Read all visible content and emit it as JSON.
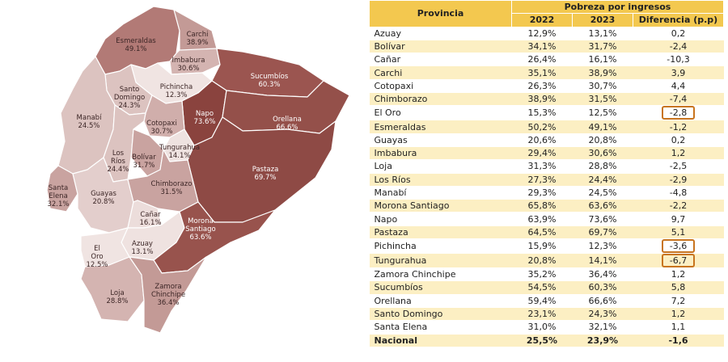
{
  "table": {
    "header_provincia": "Provincia",
    "header_group": "Pobreza por ingresos",
    "header_2022": "2022",
    "header_2023": "2023",
    "header_diff": "Diferencia (p.p)",
    "rows": [
      {
        "provincia": "Azuay",
        "v2022": "12,9%",
        "v2023": "13,1%",
        "diff": "0,2"
      },
      {
        "provincia": "Bolívar",
        "v2022": "34,1%",
        "v2023": "31,7%",
        "diff": "-2,4"
      },
      {
        "provincia": "Cañar",
        "v2022": "26,4%",
        "v2023": "16,1%",
        "diff": "-10,3"
      },
      {
        "provincia": "Carchi",
        "v2022": "35,1%",
        "v2023": "38,9%",
        "diff": "3,9"
      },
      {
        "provincia": "Cotopaxi",
        "v2022": "26,3%",
        "v2023": "30,7%",
        "diff": "4,4"
      },
      {
        "provincia": "Chimborazo",
        "v2022": "38,9%",
        "v2023": "31,5%",
        "diff": "-7,4"
      },
      {
        "provincia": "El Oro",
        "v2022": "15,3%",
        "v2023": "12,5%",
        "diff": "-2,8",
        "highlight": true
      },
      {
        "provincia": "Esmeraldas",
        "v2022": "50,2%",
        "v2023": "49,1%",
        "diff": "-1,2"
      },
      {
        "provincia": "Guayas",
        "v2022": "20,6%",
        "v2023": "20,8%",
        "diff": "0,2"
      },
      {
        "provincia": "Imbabura",
        "v2022": "29,4%",
        "v2023": "30,6%",
        "diff": "1,2"
      },
      {
        "provincia": "Loja",
        "v2022": "31,3%",
        "v2023": "28,8%",
        "diff": "-2,5"
      },
      {
        "provincia": "Los Ríos",
        "v2022": "27,3%",
        "v2023": "24,4%",
        "diff": "-2,9"
      },
      {
        "provincia": "Manabí",
        "v2022": "29,3%",
        "v2023": "24,5%",
        "diff": "-4,8"
      },
      {
        "provincia": "Morona Santiago",
        "v2022": "65,8%",
        "v2023": "63,6%",
        "diff": "-2,2"
      },
      {
        "provincia": "Napo",
        "v2022": "63,9%",
        "v2023": "73,6%",
        "diff": "9,7"
      },
      {
        "provincia": "Pastaza",
        "v2022": "64,5%",
        "v2023": "69,7%",
        "diff": "5,1"
      },
      {
        "provincia": "Pichincha",
        "v2022": "15,9%",
        "v2023": "12,3%",
        "diff": "-3,6",
        "highlight": true
      },
      {
        "provincia": "Tungurahua",
        "v2022": "20,8%",
        "v2023": "14,1%",
        "diff": "-6,7",
        "highlight": true
      },
      {
        "provincia": "Zamora Chinchipe",
        "v2022": "35,2%",
        "v2023": "36,4%",
        "diff": "1,2"
      },
      {
        "provincia": "Sucumbíos",
        "v2022": "54,5%",
        "v2023": "60,3%",
        "diff": "5,8"
      },
      {
        "provincia": "Orellana",
        "v2022": "59,4%",
        "v2023": "66,6%",
        "diff": "7,2"
      },
      {
        "provincia": "Santo Domingo",
        "v2022": "23,1%",
        "v2023": "24,3%",
        "diff": "1,2"
      },
      {
        "provincia": "Santa Elena",
        "v2022": "31,0%",
        "v2023": "32,1%",
        "diff": "1,1"
      }
    ],
    "total": {
      "provincia": "Nacional",
      "v2022": "25,5%",
      "v2023": "23,9%",
      "diff": "-1,6"
    }
  },
  "map": {
    "provinces": [
      {
        "id": "esmeraldas",
        "name": "Esmeraldas",
        "value": "49.1%",
        "color": "#b27a76"
      },
      {
        "id": "carchi",
        "name": "Carchi",
        "value": "38.9%",
        "color": "#c39a96"
      },
      {
        "id": "imbabura",
        "name": "Imbabura",
        "value": "30.6%",
        "color": "#d4b4b1"
      },
      {
        "id": "sucumbios",
        "name": "Sucumbíos",
        "value": "60.3%",
        "color": "#9b5550"
      },
      {
        "id": "pichincha",
        "name": "Pichincha",
        "value": "12.3%",
        "color": "#f0e4e2"
      },
      {
        "id": "santo-domingo",
        "name": "Santo Domingo",
        "value": "24.3%",
        "color": "#dcc3c0"
      },
      {
        "id": "manabi",
        "name": "Manabí",
        "value": "24.5%",
        "color": "#dcc3c0"
      },
      {
        "id": "napo",
        "name": "Napo",
        "value": "73.6%",
        "color": "#8a433e"
      },
      {
        "id": "orellana",
        "name": "Orellana",
        "value": "66.6%",
        "color": "#94504a"
      },
      {
        "id": "cotopaxi",
        "name": "Cotopaxi",
        "value": "30.7%",
        "color": "#d0aeab"
      },
      {
        "id": "tungurahua",
        "name": "Tungurahua",
        "value": "14.1%",
        "color": "#eee2e0"
      },
      {
        "id": "los-rios",
        "name": "Los Ríos",
        "value": "24.4%",
        "color": "#dcc3c0"
      },
      {
        "id": "bolivar",
        "name": "Bolívar",
        "value": "31.7%",
        "color": "#c9a3a0"
      },
      {
        "id": "pastaza",
        "name": "Pastaza",
        "value": "69.7%",
        "color": "#8e4a45"
      },
      {
        "id": "santa-elena",
        "name": "Santa Elena",
        "value": "32.1%",
        "color": "#c9a3a0"
      },
      {
        "id": "guayas",
        "name": "Guayas",
        "value": "20.8%",
        "color": "#e3cecc"
      },
      {
        "id": "chimborazo",
        "name": "Chimborazo",
        "value": "31.5%",
        "color": "#c9a3a0"
      },
      {
        "id": "canar",
        "name": "Cañar",
        "value": "16.1%",
        "color": "#ecdddb"
      },
      {
        "id": "azuay",
        "name": "Azuay",
        "value": "13.1%",
        "color": "#efe2e0"
      },
      {
        "id": "el-oro",
        "name": "El Oro",
        "value": "12.5%",
        "color": "#f0e4e2"
      },
      {
        "id": "morona-santiago",
        "name": "Morona Santiago",
        "value": "63.6%",
        "color": "#98534d"
      },
      {
        "id": "loja",
        "name": "Loja",
        "value": "28.8%",
        "color": "#d4b4b1"
      },
      {
        "id": "zamora-chinchipe",
        "name": "Zamora Chinchipe",
        "value": "36.4%",
        "color": "#c39a96"
      }
    ]
  }
}
